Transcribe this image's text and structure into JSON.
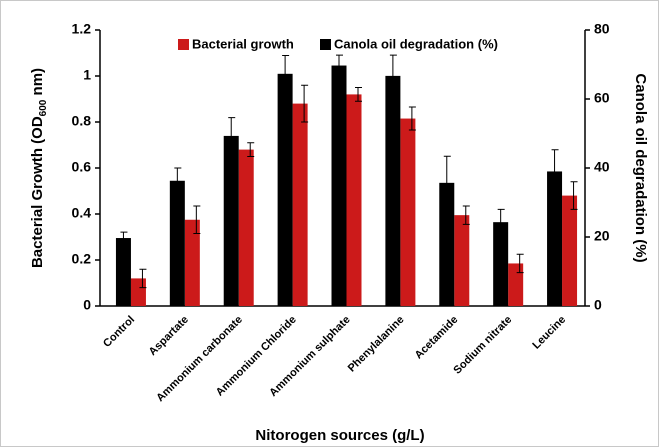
{
  "chart_data": {
    "type": "bar",
    "categories": [
      "Control",
      "Aspartate",
      "Ammonium carbonate",
      "Ammonium Chloride",
      "Ammonium sulphate",
      "Phenylalanine",
      "Acetamide",
      "Sodium nitrate",
      "Leucine"
    ],
    "series": [
      {
        "name": "Bacterial growth",
        "color": "#cc1a1a",
        "axis": "y",
        "values": [
          0.12,
          0.375,
          0.68,
          0.88,
          0.92,
          0.815,
          0.395,
          0.185,
          0.48
        ],
        "errors": [
          0.04,
          0.06,
          0.03,
          0.08,
          0.03,
          0.05,
          0.04,
          0.04,
          0.06
        ]
      },
      {
        "name": "Canola oil degradation (%)",
        "color": "#000000",
        "axis": "y2",
        "values": [
          19.7,
          36.3,
          49.3,
          67.3,
          69.7,
          66.7,
          35.7,
          24.3,
          39
        ],
        "errors": [
          1.7,
          3.7,
          5.3,
          5.3,
          3,
          6,
          7.7,
          3.7,
          6.3
        ]
      }
    ],
    "ylabel_parts": [
      "Bacterial Growth (OD",
      "600",
      " nm)"
    ],
    "y2label": "Canola oil degradation (%)",
    "xlabel": "Nitorogen sources (g/L)",
    "ylim": [
      0,
      1.2
    ],
    "yticks": [
      0,
      0.2,
      0.4,
      0.6,
      0.8,
      1,
      1.2
    ],
    "y2lim": [
      0,
      80
    ],
    "y2ticks": [
      0,
      20,
      40,
      60,
      80
    ],
    "legend": "top"
  }
}
